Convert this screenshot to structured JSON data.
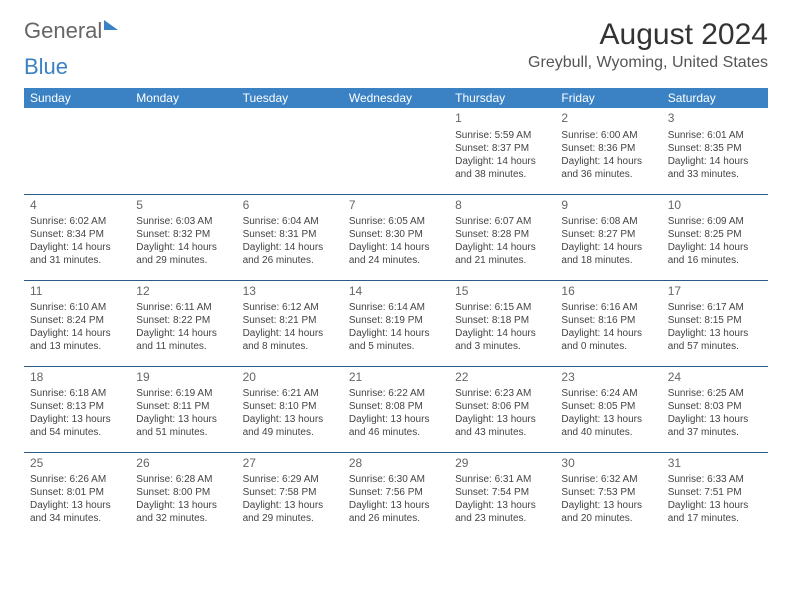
{
  "brand": {
    "part1": "General",
    "part2": "Blue"
  },
  "title": "August 2024",
  "location": "Greybull, Wyoming, United States",
  "colors": {
    "header_bg": "#3b82c4",
    "header_text": "#ffffff",
    "rule": "#2a5a8a",
    "body_text": "#444444",
    "title_text": "#333333"
  },
  "weekdays": [
    "Sunday",
    "Monday",
    "Tuesday",
    "Wednesday",
    "Thursday",
    "Friday",
    "Saturday"
  ],
  "weeks": [
    [
      null,
      null,
      null,
      null,
      {
        "n": "1",
        "sr": "Sunrise: 5:59 AM",
        "ss": "Sunset: 8:37 PM",
        "d1": "Daylight: 14 hours",
        "d2": "and 38 minutes."
      },
      {
        "n": "2",
        "sr": "Sunrise: 6:00 AM",
        "ss": "Sunset: 8:36 PM",
        "d1": "Daylight: 14 hours",
        "d2": "and 36 minutes."
      },
      {
        "n": "3",
        "sr": "Sunrise: 6:01 AM",
        "ss": "Sunset: 8:35 PM",
        "d1": "Daylight: 14 hours",
        "d2": "and 33 minutes."
      }
    ],
    [
      {
        "n": "4",
        "sr": "Sunrise: 6:02 AM",
        "ss": "Sunset: 8:34 PM",
        "d1": "Daylight: 14 hours",
        "d2": "and 31 minutes."
      },
      {
        "n": "5",
        "sr": "Sunrise: 6:03 AM",
        "ss": "Sunset: 8:32 PM",
        "d1": "Daylight: 14 hours",
        "d2": "and 29 minutes."
      },
      {
        "n": "6",
        "sr": "Sunrise: 6:04 AM",
        "ss": "Sunset: 8:31 PM",
        "d1": "Daylight: 14 hours",
        "d2": "and 26 minutes."
      },
      {
        "n": "7",
        "sr": "Sunrise: 6:05 AM",
        "ss": "Sunset: 8:30 PM",
        "d1": "Daylight: 14 hours",
        "d2": "and 24 minutes."
      },
      {
        "n": "8",
        "sr": "Sunrise: 6:07 AM",
        "ss": "Sunset: 8:28 PM",
        "d1": "Daylight: 14 hours",
        "d2": "and 21 minutes."
      },
      {
        "n": "9",
        "sr": "Sunrise: 6:08 AM",
        "ss": "Sunset: 8:27 PM",
        "d1": "Daylight: 14 hours",
        "d2": "and 18 minutes."
      },
      {
        "n": "10",
        "sr": "Sunrise: 6:09 AM",
        "ss": "Sunset: 8:25 PM",
        "d1": "Daylight: 14 hours",
        "d2": "and 16 minutes."
      }
    ],
    [
      {
        "n": "11",
        "sr": "Sunrise: 6:10 AM",
        "ss": "Sunset: 8:24 PM",
        "d1": "Daylight: 14 hours",
        "d2": "and 13 minutes."
      },
      {
        "n": "12",
        "sr": "Sunrise: 6:11 AM",
        "ss": "Sunset: 8:22 PM",
        "d1": "Daylight: 14 hours",
        "d2": "and 11 minutes."
      },
      {
        "n": "13",
        "sr": "Sunrise: 6:12 AM",
        "ss": "Sunset: 8:21 PM",
        "d1": "Daylight: 14 hours",
        "d2": "and 8 minutes."
      },
      {
        "n": "14",
        "sr": "Sunrise: 6:14 AM",
        "ss": "Sunset: 8:19 PM",
        "d1": "Daylight: 14 hours",
        "d2": "and 5 minutes."
      },
      {
        "n": "15",
        "sr": "Sunrise: 6:15 AM",
        "ss": "Sunset: 8:18 PM",
        "d1": "Daylight: 14 hours",
        "d2": "and 3 minutes."
      },
      {
        "n": "16",
        "sr": "Sunrise: 6:16 AM",
        "ss": "Sunset: 8:16 PM",
        "d1": "Daylight: 14 hours",
        "d2": "and 0 minutes."
      },
      {
        "n": "17",
        "sr": "Sunrise: 6:17 AM",
        "ss": "Sunset: 8:15 PM",
        "d1": "Daylight: 13 hours",
        "d2": "and 57 minutes."
      }
    ],
    [
      {
        "n": "18",
        "sr": "Sunrise: 6:18 AM",
        "ss": "Sunset: 8:13 PM",
        "d1": "Daylight: 13 hours",
        "d2": "and 54 minutes."
      },
      {
        "n": "19",
        "sr": "Sunrise: 6:19 AM",
        "ss": "Sunset: 8:11 PM",
        "d1": "Daylight: 13 hours",
        "d2": "and 51 minutes."
      },
      {
        "n": "20",
        "sr": "Sunrise: 6:21 AM",
        "ss": "Sunset: 8:10 PM",
        "d1": "Daylight: 13 hours",
        "d2": "and 49 minutes."
      },
      {
        "n": "21",
        "sr": "Sunrise: 6:22 AM",
        "ss": "Sunset: 8:08 PM",
        "d1": "Daylight: 13 hours",
        "d2": "and 46 minutes."
      },
      {
        "n": "22",
        "sr": "Sunrise: 6:23 AM",
        "ss": "Sunset: 8:06 PM",
        "d1": "Daylight: 13 hours",
        "d2": "and 43 minutes."
      },
      {
        "n": "23",
        "sr": "Sunrise: 6:24 AM",
        "ss": "Sunset: 8:05 PM",
        "d1": "Daylight: 13 hours",
        "d2": "and 40 minutes."
      },
      {
        "n": "24",
        "sr": "Sunrise: 6:25 AM",
        "ss": "Sunset: 8:03 PM",
        "d1": "Daylight: 13 hours",
        "d2": "and 37 minutes."
      }
    ],
    [
      {
        "n": "25",
        "sr": "Sunrise: 6:26 AM",
        "ss": "Sunset: 8:01 PM",
        "d1": "Daylight: 13 hours",
        "d2": "and 34 minutes."
      },
      {
        "n": "26",
        "sr": "Sunrise: 6:28 AM",
        "ss": "Sunset: 8:00 PM",
        "d1": "Daylight: 13 hours",
        "d2": "and 32 minutes."
      },
      {
        "n": "27",
        "sr": "Sunrise: 6:29 AM",
        "ss": "Sunset: 7:58 PM",
        "d1": "Daylight: 13 hours",
        "d2": "and 29 minutes."
      },
      {
        "n": "28",
        "sr": "Sunrise: 6:30 AM",
        "ss": "Sunset: 7:56 PM",
        "d1": "Daylight: 13 hours",
        "d2": "and 26 minutes."
      },
      {
        "n": "29",
        "sr": "Sunrise: 6:31 AM",
        "ss": "Sunset: 7:54 PM",
        "d1": "Daylight: 13 hours",
        "d2": "and 23 minutes."
      },
      {
        "n": "30",
        "sr": "Sunrise: 6:32 AM",
        "ss": "Sunset: 7:53 PM",
        "d1": "Daylight: 13 hours",
        "d2": "and 20 minutes."
      },
      {
        "n": "31",
        "sr": "Sunrise: 6:33 AM",
        "ss": "Sunset: 7:51 PM",
        "d1": "Daylight: 13 hours",
        "d2": "and 17 minutes."
      }
    ]
  ]
}
